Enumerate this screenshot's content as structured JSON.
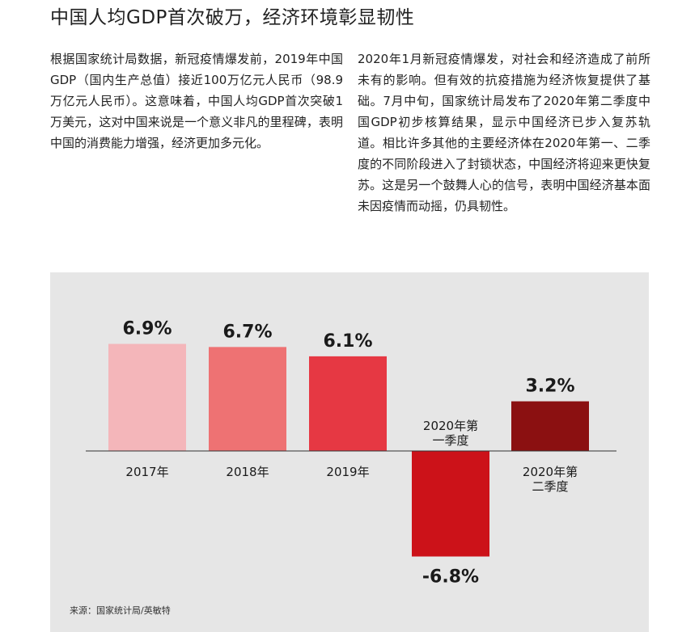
{
  "article": {
    "title": "中国人均GDP首次破万，经济环境彰显韧性",
    "para_left": "根据国家统计局数据，新冠疫情爆发前，2019年中国GDP（国内生产总值）接近100万亿元人民币（98.9万亿元人民币）。这意味着，中国人均GDP首次突破1万美元，这对中国来说是一个意义非凡的里程碑，表明中国的消费能力增强，经济更加多元化。",
    "para_right": "2020年1月新冠疫情爆发，对社会和经济造成了前所未有的影响。但有效的抗疫措施为经济恢复提供了基础。7月中旬，国家统计局发布了2020年第二季度中国GDP初步核算结果，显示中国经济已步入复苏轨道。相比许多其他的主要经济体在2020年第一、二季度的不同阶段进入了封锁状态，中国经济将迎来更快复苏。这是另一个鼓舞人心的信号，表明中国经济基本面未因疫情而动摇，仍具韧性。"
  },
  "chart_data": {
    "type": "bar",
    "categories": [
      [
        "2017年"
      ],
      [
        "2018年"
      ],
      [
        "2019年"
      ],
      [
        "2020年第",
        "一季度"
      ],
      [
        "2020年第",
        "二季度"
      ]
    ],
    "values": [
      6.9,
      6.7,
      6.1,
      -6.8,
      3.2
    ],
    "value_labels": [
      "6.9%",
      "6.7%",
      "6.1%",
      "-6.8%",
      "3.2%"
    ],
    "colors": [
      "#f4b6ba",
      "#ee7273",
      "#e63843",
      "#cc1219",
      "#8b1011"
    ],
    "ylim": [
      -6.8,
      6.9
    ],
    "source": "来源：国家统计局/英敏特"
  }
}
